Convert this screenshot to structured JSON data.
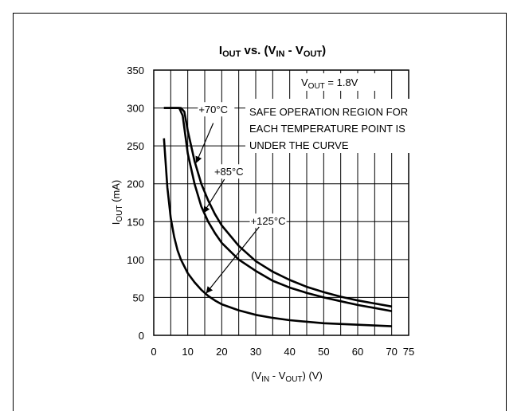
{
  "chart_data": {
    "type": "line",
    "title": {
      "main": "I",
      "main_sub": "OUT",
      "vs": " vs. (V",
      "in_sub": "IN",
      "dash": " - V",
      "out_sub": "OUT",
      "end": ")"
    },
    "xlabel": {
      "a": "(V",
      "a_sub": "IN",
      "b": " - V",
      "b_sub": "OUT",
      "c": ") (V)"
    },
    "ylabel": {
      "a": "I",
      "a_sub": "OUT",
      "b": " (mA)"
    },
    "xlim": [
      0,
      75
    ],
    "ylim": [
      0,
      350
    ],
    "xticks": [
      "0",
      "10",
      "20",
      "30",
      "40",
      "50",
      "60",
      "70",
      "75"
    ],
    "xtick_values": [
      0,
      10,
      20,
      30,
      40,
      50,
      60,
      70,
      75
    ],
    "yticks": [
      "0",
      "50",
      "100",
      "150",
      "200",
      "250",
      "300",
      "350"
    ],
    "ytick_values": [
      0,
      50,
      100,
      150,
      200,
      250,
      300,
      350
    ],
    "grid": true,
    "vout_label": {
      "a": "V",
      "a_sub": "OUT",
      "b": " = 1.8V"
    },
    "note": [
      "SAFE OPERATION REGION FOR",
      "EACH TEMPERATURE POINT IS",
      "UNDER THE CURVE"
    ],
    "series": [
      {
        "name": "+70°C",
        "x": [
          3,
          7,
          8,
          9,
          10,
          12,
          14,
          16,
          18,
          20,
          25,
          30,
          35,
          40,
          45,
          50,
          55,
          60,
          65,
          70
        ],
        "y": [
          300,
          300,
          300,
          295,
          270,
          230,
          200,
          178,
          160,
          145,
          118,
          98,
          84,
          73,
          64,
          57,
          51,
          46,
          42,
          38
        ]
      },
      {
        "name": "+85°C",
        "x": [
          3,
          6.5,
          7.5,
          8.5,
          10,
          12,
          14,
          16,
          18,
          20,
          25,
          30,
          35,
          40,
          45,
          50,
          55,
          60,
          65,
          70
        ],
        "y": [
          300,
          300,
          300,
          290,
          240,
          200,
          170,
          150,
          135,
          122,
          100,
          85,
          72,
          63,
          56,
          50,
          45,
          40,
          36,
          32
        ]
      },
      {
        "name": "+125°C",
        "x": [
          3,
          4,
          5,
          6,
          7,
          8,
          10,
          12,
          14,
          16,
          18,
          20,
          25,
          30,
          35,
          40,
          50,
          60,
          70
        ],
        "y": [
          260,
          195,
          155,
          130,
          112,
          100,
          82,
          70,
          60,
          52,
          46,
          41,
          33,
          27,
          23,
          20,
          16,
          14,
          12
        ]
      }
    ]
  }
}
